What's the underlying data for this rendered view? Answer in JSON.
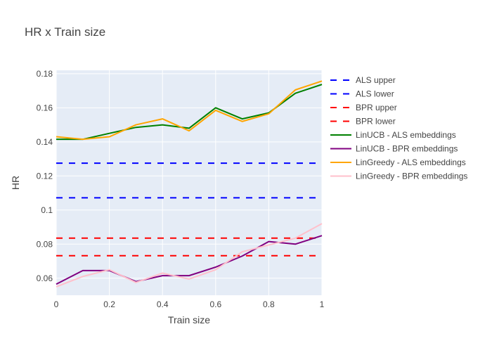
{
  "chart_data": {
    "type": "line",
    "title": "HR x Train size",
    "xlabel": "Train size",
    "ylabel": "HR",
    "xlim": [
      0,
      1
    ],
    "ylim": [
      0.05,
      0.182
    ],
    "grid": true,
    "legend_position": "right",
    "x_ticks": [
      {
        "value": 0,
        "label": "0"
      },
      {
        "value": 0.2,
        "label": "0.2"
      },
      {
        "value": 0.4,
        "label": "0.4"
      },
      {
        "value": 0.6,
        "label": "0.6"
      },
      {
        "value": 0.8,
        "label": "0.8"
      },
      {
        "value": 1,
        "label": "1"
      }
    ],
    "y_ticks": [
      {
        "value": 0.06,
        "label": "0.06"
      },
      {
        "value": 0.08,
        "label": "0.08"
      },
      {
        "value": 0.1,
        "label": "0.1"
      },
      {
        "value": 0.12,
        "label": "0.12"
      },
      {
        "value": 0.14,
        "label": "0.14"
      },
      {
        "value": 0.16,
        "label": "0.16"
      },
      {
        "value": 0.18,
        "label": "0.18"
      }
    ],
    "x": [
      0,
      0.1,
      0.2,
      0.3,
      0.4,
      0.5,
      0.6,
      0.7,
      0.8,
      0.9,
      1.0
    ],
    "series": [
      {
        "name": "ALS upper",
        "color": "#0000ff",
        "dash": true,
        "values": [
          0.1275,
          0.1275,
          0.1275,
          0.1275,
          0.1275,
          0.1275,
          0.1275,
          0.1275,
          0.1275,
          0.1275,
          0.1275
        ]
      },
      {
        "name": "ALS lower",
        "color": "#0000ff",
        "dash": true,
        "values": [
          0.1072,
          0.1072,
          0.1072,
          0.1072,
          0.1072,
          0.1072,
          0.1072,
          0.1072,
          0.1072,
          0.1072,
          0.1072
        ]
      },
      {
        "name": "BPR upper",
        "color": "#ff0000",
        "dash": true,
        "values": [
          0.0835,
          0.0835,
          0.0835,
          0.0835,
          0.0835,
          0.0835,
          0.0835,
          0.0835,
          0.0835,
          0.0835,
          0.0835
        ]
      },
      {
        "name": "BPR lower",
        "color": "#ff0000",
        "dash": true,
        "values": [
          0.0732,
          0.0732,
          0.0732,
          0.0732,
          0.0732,
          0.0732,
          0.0732,
          0.0732,
          0.0732,
          0.0732,
          0.0732
        ]
      },
      {
        "name": "LinUCB - ALS embeddings",
        "color": "#008000",
        "dash": false,
        "values": [
          0.1415,
          0.1415,
          0.145,
          0.1485,
          0.15,
          0.148,
          0.16,
          0.1535,
          0.157,
          0.1685,
          0.1737
        ]
      },
      {
        "name": "LinUCB - BPR embeddings",
        "color": "#800080",
        "dash": false,
        "values": [
          0.0565,
          0.0645,
          0.0645,
          0.058,
          0.0615,
          0.0615,
          0.0665,
          0.073,
          0.0815,
          0.08,
          0.085
        ]
      },
      {
        "name": "LinGreedy - ALS embeddings",
        "color": "#ffa500",
        "dash": false,
        "values": [
          0.143,
          0.1415,
          0.143,
          0.15,
          0.1535,
          0.1465,
          0.1585,
          0.152,
          0.1565,
          0.1705,
          0.1757
        ]
      },
      {
        "name": "LinGreedy - BPR embeddings",
        "color": "#ffc0cb",
        "dash": false,
        "values": [
          0.055,
          0.061,
          0.065,
          0.0575,
          0.063,
          0.0595,
          0.065,
          0.0755,
          0.0795,
          0.0835,
          0.092
        ]
      }
    ]
  }
}
